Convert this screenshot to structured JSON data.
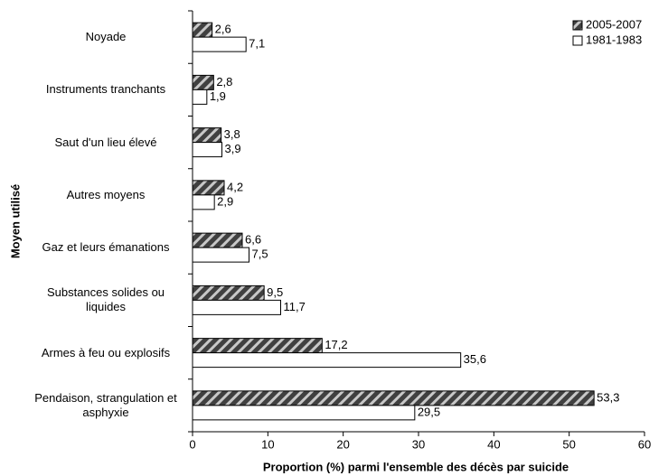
{
  "chart_data": {
    "type": "hbar",
    "x_label": "Proportion (%) parmi l'ensemble des décès par suicide",
    "y_label": "Moyen utilisé",
    "categories": [
      "Noyade",
      "Instruments tranchants",
      "Saut d'un lieu élevé",
      "Autres moyens",
      "Gaz et leurs émanations",
      "Substances solides ou liquides",
      "Armes à feu ou explosifs",
      "Pendaison, strangulation et asphyxie"
    ],
    "series": [
      {
        "name": "2005-2007",
        "color": "#404040",
        "pattern": "hatch",
        "values": [
          2.6,
          2.8,
          3.8,
          4.2,
          6.6,
          9.5,
          17.2,
          53.3
        ],
        "value_labels": [
          "2,6",
          "2,8",
          "3,8",
          "4,2",
          "6,6",
          "9,5",
          "17,2",
          "53,3"
        ]
      },
      {
        "name": "1981-1983",
        "color": "#ffffff",
        "values": [
          7.1,
          1.9,
          3.9,
          2.9,
          7.5,
          11.7,
          35.6,
          29.5
        ],
        "value_labels": [
          "7,1",
          "1,9",
          "3,9",
          "2,9",
          "7,5",
          "11,7",
          "35,6",
          "29,5"
        ]
      }
    ],
    "xlim": [
      0,
      60
    ],
    "xticks": [
      0,
      10,
      20,
      30,
      40,
      50,
      60
    ],
    "grid": false,
    "legend": "top-right"
  }
}
